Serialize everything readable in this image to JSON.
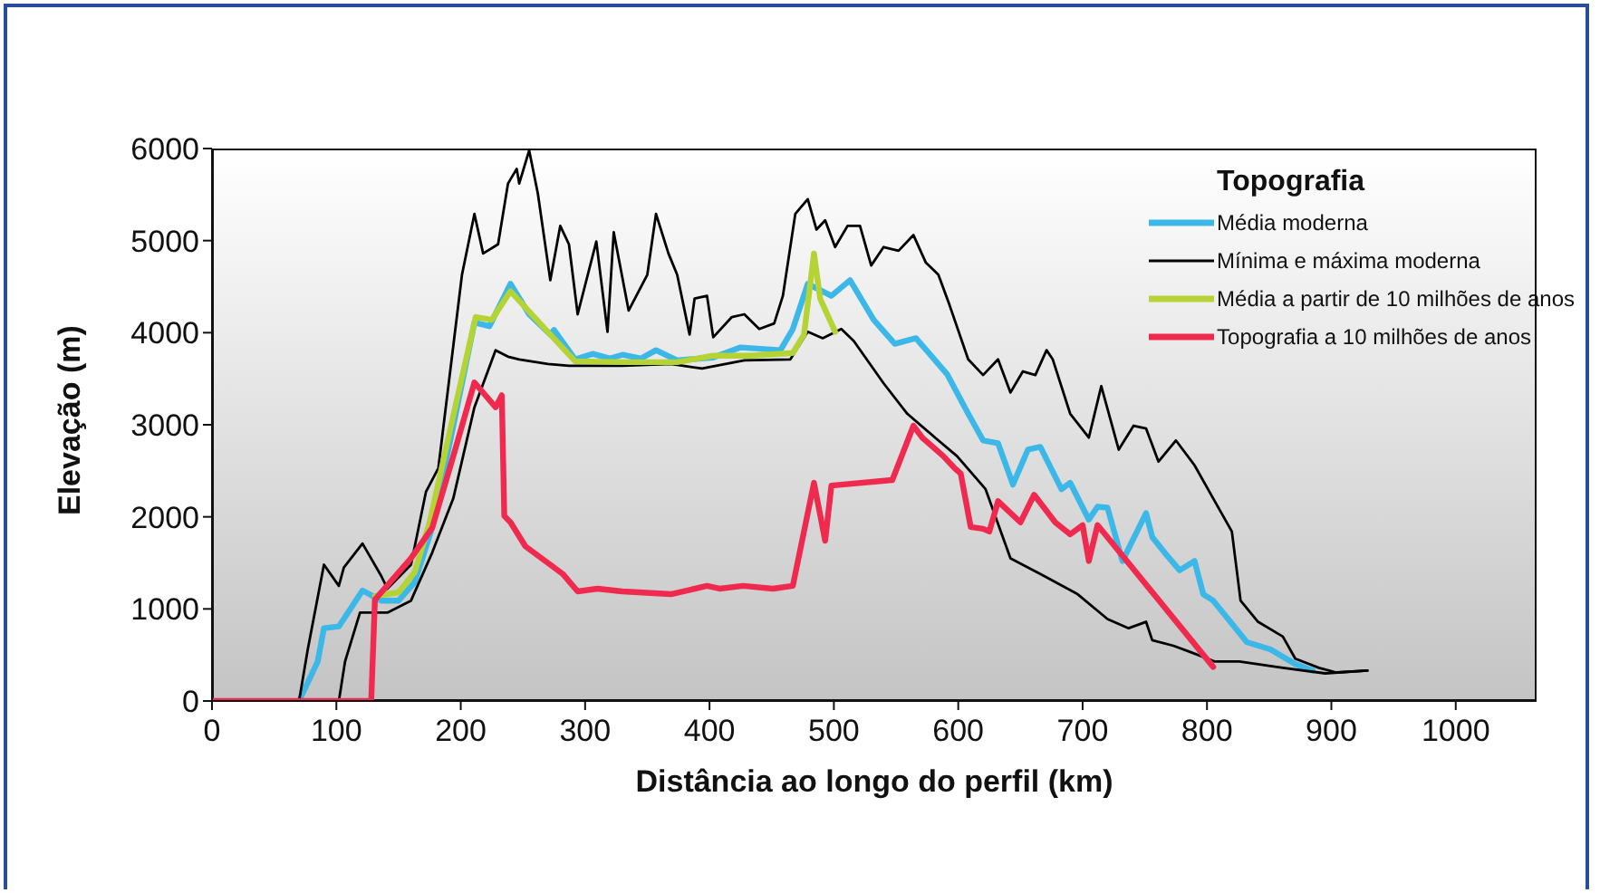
{
  "chart_data": {
    "type": "line",
    "xlabel": "Distância ao longo do perfil (km)",
    "ylabel": "Elevação (m)",
    "legend_title": "Topografia",
    "legend": "top right",
    "marker": "none",
    "line_style": "solid",
    "xlim": [
      0,
      1065
    ],
    "xticks": [
      0,
      100,
      200,
      300,
      400,
      500,
      600,
      700,
      800,
      900,
      1000
    ],
    "ylim": [
      0,
      6000
    ],
    "yticks": [
      0,
      1000,
      2000,
      3000,
      4000,
      5000,
      6000
    ],
    "series": [
      {
        "name": "Média moderna",
        "color": "#3cb8e8",
        "x": [
          70,
          85,
          90,
          102,
          121,
          136,
          150,
          163,
          177,
          194,
          211,
          223,
          240,
          255,
          272,
          275,
          292,
          306,
          320,
          330,
          345,
          357,
          374,
          403,
          425,
          457,
          467,
          479,
          498,
          513,
          532,
          549,
          566,
          591,
          608,
          620,
          632,
          644,
          656,
          666,
          683,
          690,
          705,
          712,
          720,
          732,
          751,
          756,
          766,
          778,
          790,
          797,
          805,
          817,
          832,
          851,
          871,
          885
        ],
        "values": [
          0,
          430,
          790,
          810,
          1200,
          1090,
          1090,
          1290,
          1880,
          2990,
          4110,
          4070,
          4530,
          4200,
          3980,
          4030,
          3710,
          3770,
          3720,
          3760,
          3720,
          3810,
          3700,
          3730,
          3840,
          3810,
          4040,
          4530,
          4400,
          4570,
          4140,
          3880,
          3940,
          3550,
          3120,
          2830,
          2800,
          2350,
          2730,
          2760,
          2300,
          2370,
          1970,
          2110,
          2100,
          1520,
          2040,
          1780,
          1610,
          1420,
          1520,
          1160,
          1090,
          890,
          640,
          560,
          400,
          330
        ]
      },
      {
        "name": "Mínima e máxima moderna",
        "color": "#000000",
        "x": [
          70,
          77,
          90,
          102,
          106,
          121,
          136,
          141,
          160,
          172,
          182,
          201,
          211,
          218,
          230,
          238,
          245,
          247,
          255,
          262,
          272,
          280,
          287,
          294,
          309,
          318,
          323,
          335,
          350,
          357,
          367,
          374,
          384,
          388,
          398,
          403,
          418,
          428,
          440,
          452,
          459,
          469,
          479,
          486,
          493,
          501,
          511,
          521,
          530,
          540,
          552,
          564,
          574,
          584,
          593,
          608,
          620,
          632,
          642,
          652,
          662,
          671,
          676,
          690,
          705,
          715,
          729,
          741,
          751,
          761,
          775,
          790,
          805,
          820,
          827,
          841,
          861,
          871,
          890,
          904,
          929
        ],
        "values": [
          0,
          560,
          1480,
          1250,
          1450,
          1710,
          1360,
          1220,
          1480,
          2270,
          2530,
          4630,
          5290,
          4860,
          4960,
          5620,
          5780,
          5620,
          5980,
          5510,
          4570,
          5160,
          4960,
          4200,
          4990,
          4010,
          5090,
          4240,
          4630,
          5290,
          4860,
          4630,
          3980,
          4370,
          4400,
          3950,
          4170,
          4200,
          4040,
          4100,
          4400,
          5290,
          5450,
          5120,
          5220,
          4930,
          5160,
          5160,
          4730,
          4930,
          4890,
          5060,
          4760,
          4630,
          4300,
          3710,
          3540,
          3710,
          3350,
          3580,
          3540,
          3810,
          3710,
          3120,
          2860,
          3420,
          2730,
          2990,
          2960,
          2600,
          2830,
          2560,
          2200,
          1840,
          1090,
          860,
          700,
          460,
          360,
          310,
          330
        ]
      },
      {
        "color": "#000000",
        "x": [
          85,
          102,
          107,
          119,
          141,
          160,
          177,
          194,
          211,
          228,
          238,
          247,
          270,
          287,
          330,
          369,
          394,
          428,
          465,
          479,
          491,
          506,
          516,
          540,
          559,
          584,
          599,
          622,
          642,
          666,
          696,
          720,
          737,
          751,
          756,
          773,
          787,
          806,
          826,
          861,
          895,
          929
        ],
        "values": [
          0,
          0,
          430,
          960,
          960,
          1090,
          1610,
          2200,
          3190,
          3810,
          3740,
          3710,
          3660,
          3640,
          3640,
          3660,
          3610,
          3700,
          3710,
          4010,
          3940,
          4040,
          3910,
          3450,
          3120,
          2830,
          2660,
          2300,
          1550,
          1380,
          1160,
          890,
          790,
          860,
          660,
          600,
          530,
          430,
          430,
          360,
          300,
          330
        ]
      },
      {
        "name": "Média a partir de 10 milhões de anos",
        "color": "#b5d334",
        "x": [
          131,
          150,
          163,
          175,
          194,
          212,
          225,
          240,
          272,
          292,
          330,
          374,
          403,
          433,
          467,
          476,
          484,
          489,
          501
        ],
        "values": [
          1140,
          1180,
          1400,
          1940,
          3100,
          4170,
          4140,
          4450,
          3980,
          3690,
          3680,
          3680,
          3750,
          3750,
          3780,
          3980,
          4860,
          4370,
          4010
        ]
      },
      {
        "name": "Topografia a 10 milhões de anos",
        "color": "#f0294f",
        "x": [
          0,
          128,
          131,
          160,
          177,
          194,
          211,
          228,
          233,
          235,
          240,
          252,
          272,
          282,
          294,
          310,
          330,
          369,
          398,
          408,
          427,
          451,
          467,
          484,
          493,
          498,
          547,
          564,
          571,
          588,
          597,
          602,
          610,
          620,
          625,
          632,
          650,
          661,
          678,
          690,
          700,
          705,
          712,
          805
        ],
        "values": [
          0,
          0,
          1100,
          1550,
          1880,
          2660,
          3460,
          3190,
          3320,
          2010,
          1940,
          1680,
          1480,
          1380,
          1190,
          1220,
          1190,
          1160,
          1250,
          1220,
          1250,
          1220,
          1250,
          2370,
          1740,
          2340,
          2400,
          2990,
          2860,
          2660,
          2530,
          2470,
          1890,
          1870,
          1840,
          2170,
          1940,
          2240,
          1940,
          1810,
          1910,
          1520,
          1910,
          370
        ]
      }
    ]
  }
}
